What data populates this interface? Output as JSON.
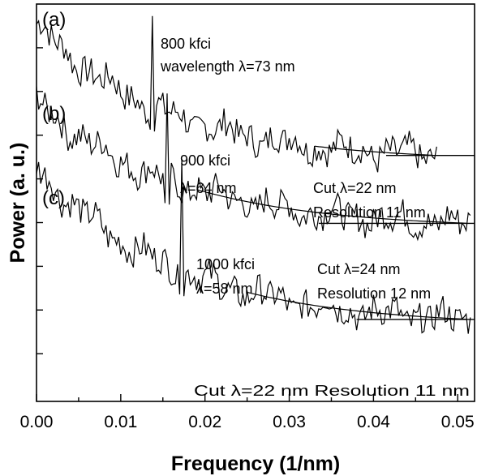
{
  "chart_data": {
    "type": "line",
    "xlabel": "Frequency (1/nm)",
    "ylabel": "Power (a. u.)",
    "xlim": [
      0.0,
      0.052
    ],
    "ylim": [
      0,
      10
    ],
    "x_ticks": [
      "0.00",
      "0.01",
      "0.02",
      "0.03",
      "0.04",
      "0.05"
    ],
    "x_tick_values": [
      0.0,
      0.01,
      0.02,
      0.03,
      0.04,
      0.05
    ],
    "y_tick_values": [
      1.2,
      2.3,
      3.4,
      4.5,
      5.6,
      6.7,
      7.8,
      8.9
    ],
    "grid": false,
    "panels": [
      {
        "label": "(a)",
        "density": "800 kfci",
        "wavelength": "wavelength λ=73 nm",
        "peak_x": 0.0137,
        "start_level": 9.5,
        "baseline": 6.05,
        "end_x": 0.0475,
        "fit_from_x": 0.033,
        "hline_from_x": 0.0415,
        "cut": "",
        "resolution": ""
      },
      {
        "label": "(b)",
        "density": "900 kfci",
        "wavelength": "λ=64 nm",
        "peak_x": 0.0155,
        "start_level": 7.55,
        "baseline": 4.35,
        "end_x": 0.0515,
        "fit_from_x": 0.019,
        "hline_from_x": 0.0335,
        "cut": "Cut λ=24 nm",
        "resolution": "Resolution 12 nm"
      },
      {
        "label": "(c)",
        "density": "1000 kfci",
        "wavelength": "λ=58 nm",
        "peak_x": 0.0172,
        "start_level": 5.9,
        "baseline": 1.9,
        "end_x": 0.0515,
        "fit_from_x": 0.025,
        "hline_from_x": 0.038,
        "cut": "",
        "resolution": ""
      }
    ],
    "side_notes": {
      "a": {
        "cut": "Cut λ=22 nm",
        "resolution": "Resolution 11 nm"
      },
      "c": {
        "cut_resolution": "Cut λ=22 nm Resolution 11 nm"
      }
    }
  }
}
